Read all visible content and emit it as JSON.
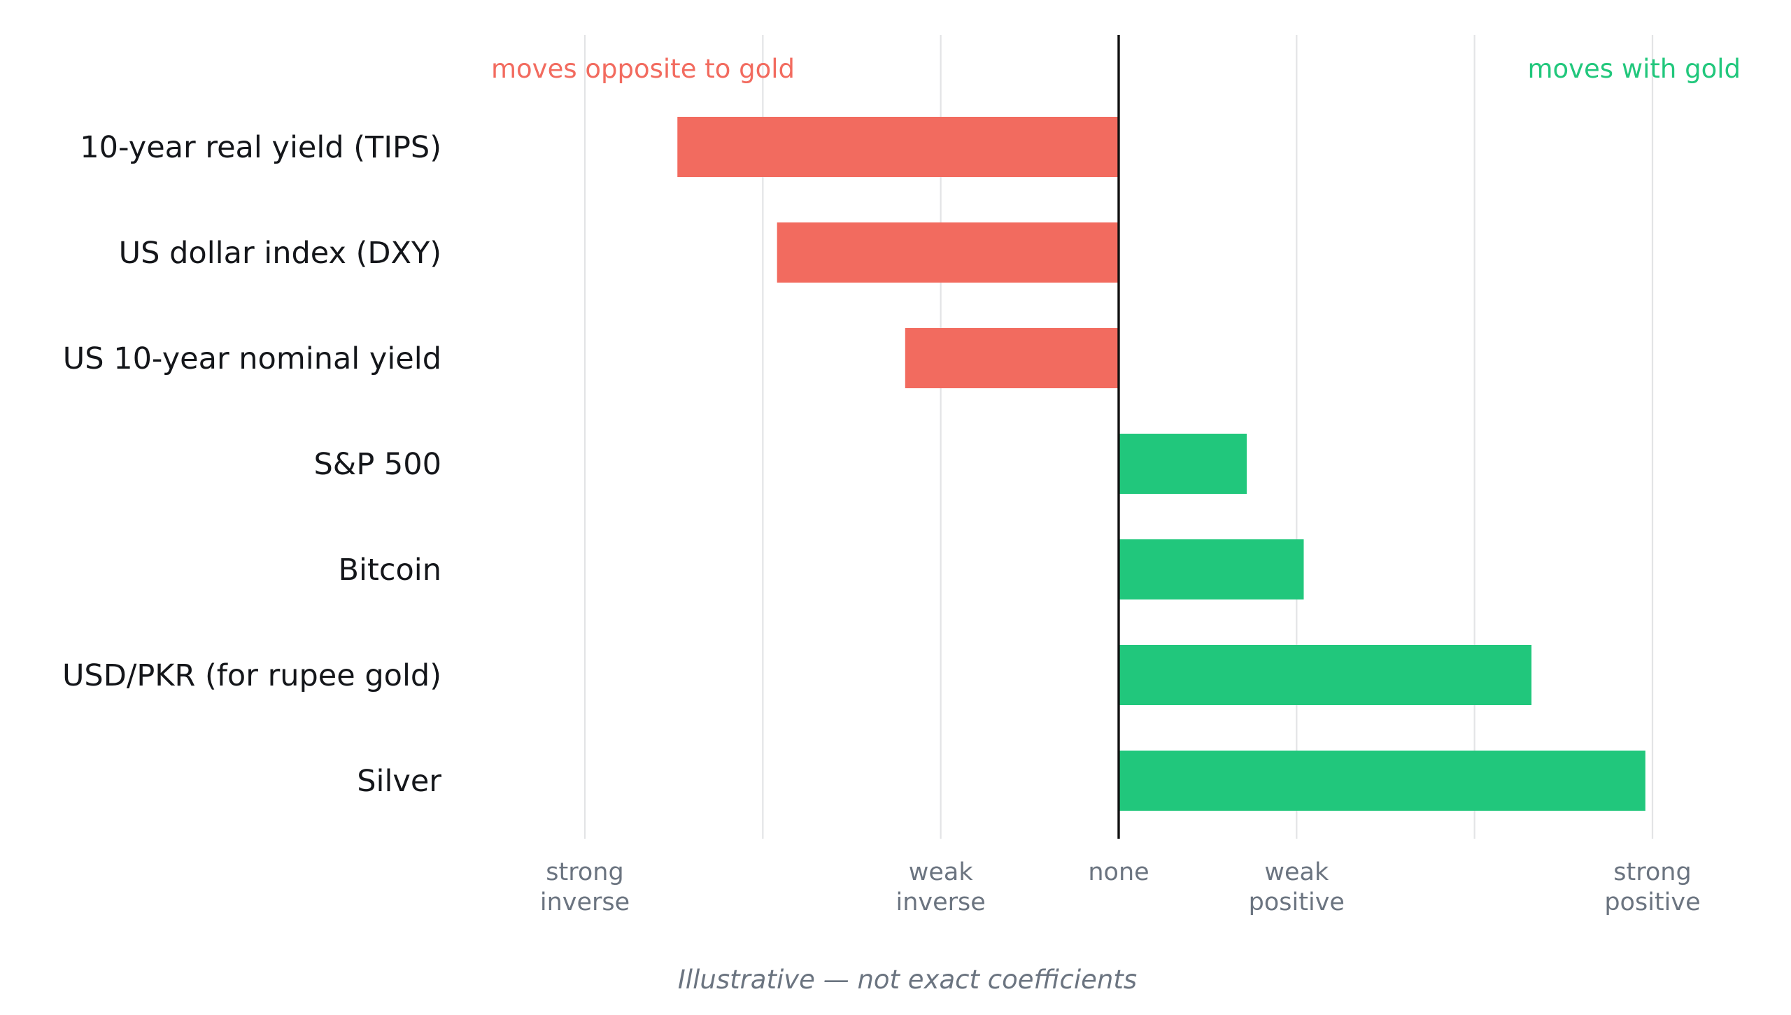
{
  "chart_data": {
    "type": "bar",
    "orientation": "horizontal",
    "categories": [
      "10-year real yield (TIPS)",
      "US dollar index (DXY)",
      "US 10-year nominal yield",
      "S&P 500",
      "Bitcoin",
      "USD/PKR (for rupee gold)",
      "Silver"
    ],
    "values": [
      -0.62,
      -0.48,
      -0.3,
      0.18,
      0.26,
      0.58,
      0.74
    ],
    "xlim": [
      -0.75,
      0.75
    ],
    "xticks": [
      {
        "value": -0.75,
        "label": [
          "strong",
          "inverse"
        ]
      },
      {
        "value": -0.5,
        "label": []
      },
      {
        "value": -0.25,
        "label": [
          "weak",
          "inverse"
        ]
      },
      {
        "value": 0,
        "label": [
          "none"
        ]
      },
      {
        "value": 0.25,
        "label": [
          "weak",
          "positive"
        ]
      },
      {
        "value": 0.5,
        "label": []
      },
      {
        "value": 0.75,
        "label": [
          "strong",
          "positive"
        ]
      }
    ],
    "grid": "vertical",
    "annotations": {
      "negative": "moves opposite to gold",
      "positive": "moves with gold"
    },
    "caption": "Illustrative — not exact coefficients",
    "colors": {
      "negative": "#f26b5f",
      "positive": "#21c77c",
      "negative_text": "#f26b5f",
      "positive_text": "#21c77c",
      "zero_line": "#111111",
      "grid": "#e3e4e6"
    }
  }
}
